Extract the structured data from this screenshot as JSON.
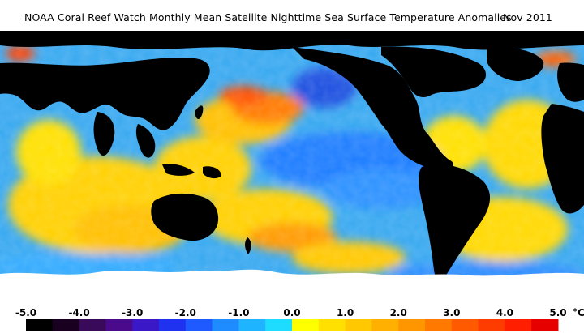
{
  "title": "NOAA Coral Reef Watch Monthly Mean Satellite Nighttime Sea Surface Temperature Anomalies",
  "date": "Nov 2011",
  "map": {
    "ocean_base_color": "#37a8f0",
    "land_color": "#000000",
    "ice_color": "#ffffff"
  },
  "scale": {
    "unit": "°C",
    "labels": [
      "-5.0",
      "-4.0",
      "-3.0",
      "-2.0",
      "-1.0",
      "0.0",
      "1.0",
      "2.0",
      "3.0",
      "4.0",
      "5.0"
    ],
    "colors": [
      "#000000",
      "#1a0020",
      "#3a0a5a",
      "#4b0a8c",
      "#3a18c8",
      "#1e32f0",
      "#1e5aff",
      "#1e8cff",
      "#1eb4ff",
      "#1edcff",
      "#ffff00",
      "#ffe000",
      "#ffc800",
      "#ffb000",
      "#ff9600",
      "#ff7800",
      "#ff5a00",
      "#ff3c00",
      "#ff1e00",
      "#e60000"
    ]
  }
}
